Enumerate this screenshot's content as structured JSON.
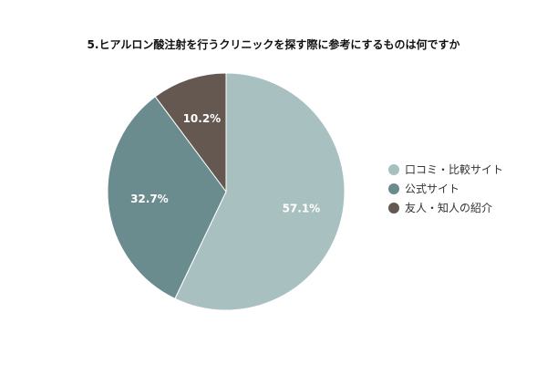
{
  "chart_data": {
    "type": "pie",
    "title": "5.ヒアルロン酸注射を行うクリニックを探す際に参考にするものは何ですか",
    "slices": [
      {
        "label": "口コミ・比較サイト",
        "value": 57.1,
        "display": "57.1%",
        "color": "#a9c0c1"
      },
      {
        "label": "公式サイト",
        "value": 32.7,
        "display": "32.7%",
        "color": "#6b8c8e"
      },
      {
        "label": "友人・知人の紹介",
        "value": 10.2,
        "display": "10.2%",
        "color": "#655850"
      }
    ],
    "start_angle_deg": 0,
    "direction": "clockwise",
    "slice_border_color": "#ffffff",
    "legend_position": "right"
  }
}
